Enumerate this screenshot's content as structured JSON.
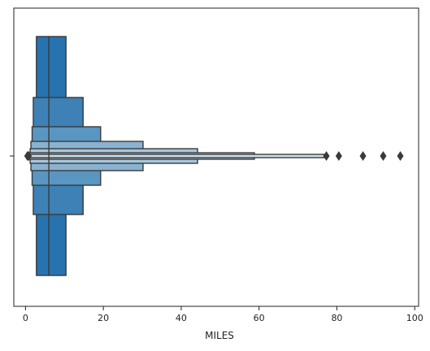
{
  "chart_data": {
    "type": "boxen",
    "title": "",
    "xlabel": "MILES",
    "ylabel": "",
    "xlim": [
      -3,
      101
    ],
    "xticks": [
      0,
      20,
      40,
      60,
      80,
      100
    ],
    "xtick_labels": [
      "0",
      "20",
      "40",
      "60",
      "80",
      "100"
    ],
    "median": 6.0,
    "boxes": [
      {
        "low": 2.8,
        "high": 10.4,
        "color": "#2773b0"
      },
      {
        "low": 2.0,
        "high": 14.8,
        "color": "#3d81b6"
      },
      {
        "low": 1.7,
        "high": 19.3,
        "color": "#5a96c2"
      },
      {
        "low": 1.4,
        "high": 30.2,
        "color": "#8ab2d1"
      },
      {
        "low": 1.2,
        "high": 44.2,
        "color": "#a6c6dd"
      },
      {
        "low": 1.0,
        "high": 58.8,
        "color": "#bdd4e6"
      },
      {
        "low": 0.9,
        "high": 76.7,
        "color": "#d0e0ec"
      }
    ],
    "outliers_high": [
      77.3,
      80.5,
      86.7,
      91.9,
      96.3
    ],
    "outliers_low": [
      0.5,
      0.7,
      0.8
    ],
    "grid": false,
    "legend": "none"
  }
}
